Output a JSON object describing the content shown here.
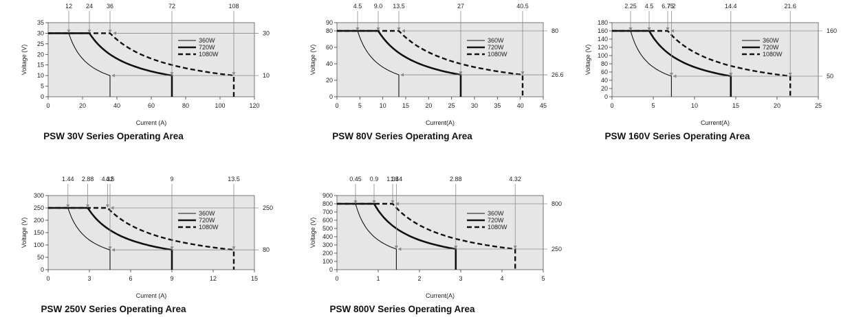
{
  "chart_data": [
    {
      "type": "line",
      "title": "PSW 30V Series Operating Area",
      "xlabel": "Current (A)",
      "ylabel": "Voltage (V)",
      "xlim": [
        0,
        120
      ],
      "ylim": [
        0,
        35
      ],
      "xticks": [
        "0",
        "20",
        "40",
        "60",
        "80",
        "100",
        "120"
      ],
      "yticks": [
        "0",
        "5",
        "10",
        "15",
        "20",
        "25",
        "30",
        "35"
      ],
      "legend_position": "right",
      "top_markers": [
        "12",
        "24",
        "36",
        "72",
        "108"
      ],
      "right_markers": [
        "30",
        "10"
      ],
      "series": [
        {
          "name": "360W",
          "style": "thin",
          "v_max": 30,
          "i_max": 36,
          "power": 360,
          "v_min_at_i_max": 10
        },
        {
          "name": "720W",
          "style": "thick",
          "v_max": 30,
          "i_max": 72,
          "power": 720,
          "v_min_at_i_max": 10
        },
        {
          "name": "1080W",
          "style": "dashed",
          "v_max": 30,
          "i_max": 108,
          "power": 1080,
          "v_min_at_i_max": 10
        }
      ]
    },
    {
      "type": "line",
      "title": "PSW 80V Series Operating Area",
      "xlabel": "Current(A)",
      "ylabel": "Voltage (V)",
      "xlim": [
        0,
        45
      ],
      "ylim": [
        0,
        90
      ],
      "xticks": [
        "0",
        "5",
        "10",
        "15",
        "20",
        "25",
        "30",
        "35",
        "40",
        "45"
      ],
      "yticks": [
        "0",
        "20",
        "40",
        "60",
        "80",
        "90"
      ],
      "legend_position": "right",
      "top_markers": [
        "4.5",
        "9.0",
        "13.5",
        "27",
        "40.5"
      ],
      "right_markers": [
        "80",
        "26.6"
      ],
      "series": [
        {
          "name": "360W",
          "style": "thin",
          "v_max": 80,
          "i_max": 13.5,
          "power": 360,
          "v_min_at_i_max": 26.6
        },
        {
          "name": "720W",
          "style": "thick",
          "v_max": 80,
          "i_max": 27,
          "power": 720,
          "v_min_at_i_max": 26.6
        },
        {
          "name": "1080W",
          "style": "dashed",
          "v_max": 80,
          "i_max": 40.5,
          "power": 1080,
          "v_min_at_i_max": 26.6
        }
      ]
    },
    {
      "type": "line",
      "title": "PSW 160V Series Operating Area",
      "xlabel": "Current(A)",
      "ylabel": "Voltage (V)",
      "xlim": [
        0,
        25
      ],
      "ylim": [
        0,
        180
      ],
      "xticks": [
        "0",
        "5",
        "10",
        "15",
        "20",
        "25"
      ],
      "yticks": [
        "0",
        "20",
        "40",
        "60",
        "80",
        "100",
        "120",
        "140",
        "160",
        "180"
      ],
      "legend_position": "right",
      "top_markers": [
        "2.25",
        "4.5",
        "6.75",
        "7.2",
        "14.4",
        "21.6"
      ],
      "right_markers": [
        "160",
        "50"
      ],
      "series": [
        {
          "name": "360W",
          "style": "thin",
          "v_max": 160,
          "i_max": 7.2,
          "power": 360,
          "v_min_at_i_max": 50
        },
        {
          "name": "720W",
          "style": "thick",
          "v_max": 160,
          "i_max": 14.4,
          "power": 720,
          "v_min_at_i_max": 50
        },
        {
          "name": "1080W",
          "style": "dashed",
          "v_max": 160,
          "i_max": 21.6,
          "power": 1080,
          "v_min_at_i_max": 50
        }
      ]
    },
    {
      "type": "line",
      "title": "PSW 250V Series Operating Area",
      "xlabel": "Current (A)",
      "ylabel": "Voltage (V)",
      "xlim": [
        0,
        15
      ],
      "ylim": [
        0,
        300
      ],
      "xticks": [
        "0",
        "3",
        "6",
        "9",
        "12",
        "15"
      ],
      "yticks": [
        "0",
        "50",
        "100",
        "150",
        "200",
        "250",
        "300"
      ],
      "legend_position": "right",
      "top_markers": [
        "1.44",
        "2.88",
        "4.32",
        "4.5",
        "9",
        "13.5"
      ],
      "right_markers": [
        "250",
        "80"
      ],
      "series": [
        {
          "name": "360W",
          "style": "thin",
          "v_max": 250,
          "i_max": 4.5,
          "power": 360,
          "v_min_at_i_max": 80
        },
        {
          "name": "720W",
          "style": "thick",
          "v_max": 250,
          "i_max": 9,
          "power": 720,
          "v_min_at_i_max": 80
        },
        {
          "name": "1080W",
          "style": "dashed",
          "v_max": 250,
          "i_max": 13.5,
          "power": 1080,
          "v_min_at_i_max": 80
        }
      ]
    },
    {
      "type": "line",
      "title": "PSW 800V Series Operating Area",
      "xlabel": "Current(A)",
      "ylabel": "Voltage (V)",
      "xlim": [
        0,
        5
      ],
      "ylim": [
        0,
        900
      ],
      "xticks": [
        "0",
        "1",
        "2",
        "3",
        "4",
        "5"
      ],
      "yticks": [
        "0",
        "100",
        "200",
        "300",
        "400",
        "500",
        "600",
        "700",
        "800",
        "900"
      ],
      "legend_position": "right",
      "top_markers": [
        "0.45",
        "0.9",
        "1.35",
        "1.44",
        "2.88",
        "4.32"
      ],
      "right_markers": [
        "800",
        "250"
      ],
      "series": [
        {
          "name": "360W",
          "style": "thin",
          "v_max": 800,
          "i_max": 1.44,
          "power": 360,
          "v_min_at_i_max": 250
        },
        {
          "name": "720W",
          "style": "thick",
          "v_max": 800,
          "i_max": 2.88,
          "power": 720,
          "v_min_at_i_max": 250
        },
        {
          "name": "1080W",
          "style": "dashed",
          "v_max": 800,
          "i_max": 4.32,
          "power": 1080,
          "v_min_at_i_max": 250
        }
      ]
    }
  ],
  "colors": {
    "plot_background": "#e6e6e6",
    "series_line": "#111111",
    "marker_line": "#8a8a8a"
  }
}
